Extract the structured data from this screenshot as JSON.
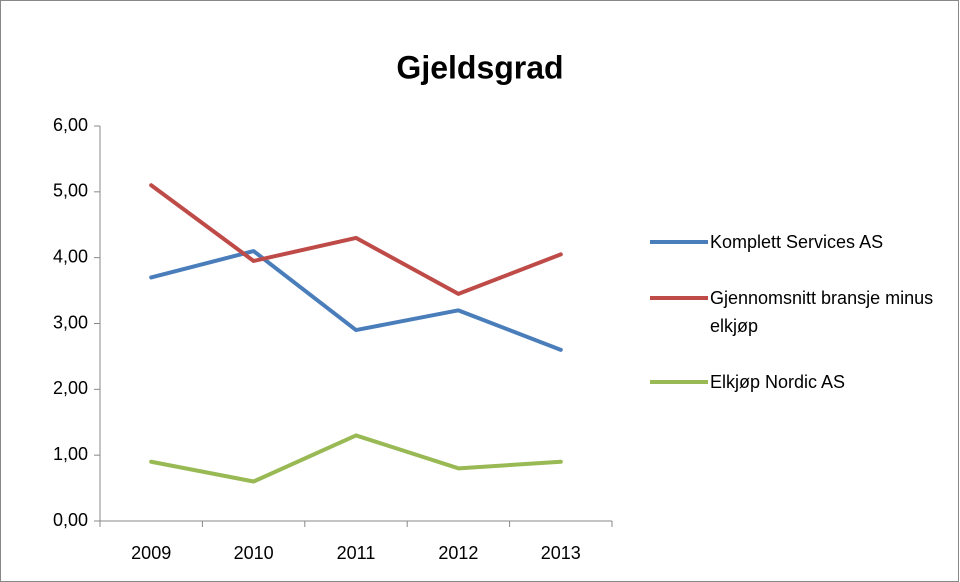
{
  "chart_data": {
    "type": "line",
    "title": "Gjeldsgrad",
    "categories": [
      "2009",
      "2010",
      "2011",
      "2012",
      "2013"
    ],
    "series": [
      {
        "name": "Komplett Services AS",
        "color": "#4a7ebb",
        "values": [
          3.7,
          4.1,
          2.9,
          3.2,
          2.6
        ]
      },
      {
        "name": "Gjennomsnitt bransje minus elkjøp",
        "color": "#be4b48",
        "values": [
          5.1,
          3.95,
          4.3,
          3.45,
          4.05
        ]
      },
      {
        "name": "Elkjøp Nordic AS",
        "color": "#98b954",
        "values": [
          0.9,
          0.6,
          1.3,
          0.8,
          0.9
        ]
      }
    ],
    "ylim": [
      0,
      6
    ],
    "yticks": [
      {
        "value": 0,
        "label": "0,00"
      },
      {
        "value": 1,
        "label": "1,00"
      },
      {
        "value": 2,
        "label": "2,00"
      },
      {
        "value": 3,
        "label": "3,00"
      },
      {
        "value": 4,
        "label": "4,00"
      },
      {
        "value": 5,
        "label": "5,00"
      },
      {
        "value": 6,
        "label": "6,00"
      }
    ],
    "grid": false,
    "legend": "right"
  }
}
